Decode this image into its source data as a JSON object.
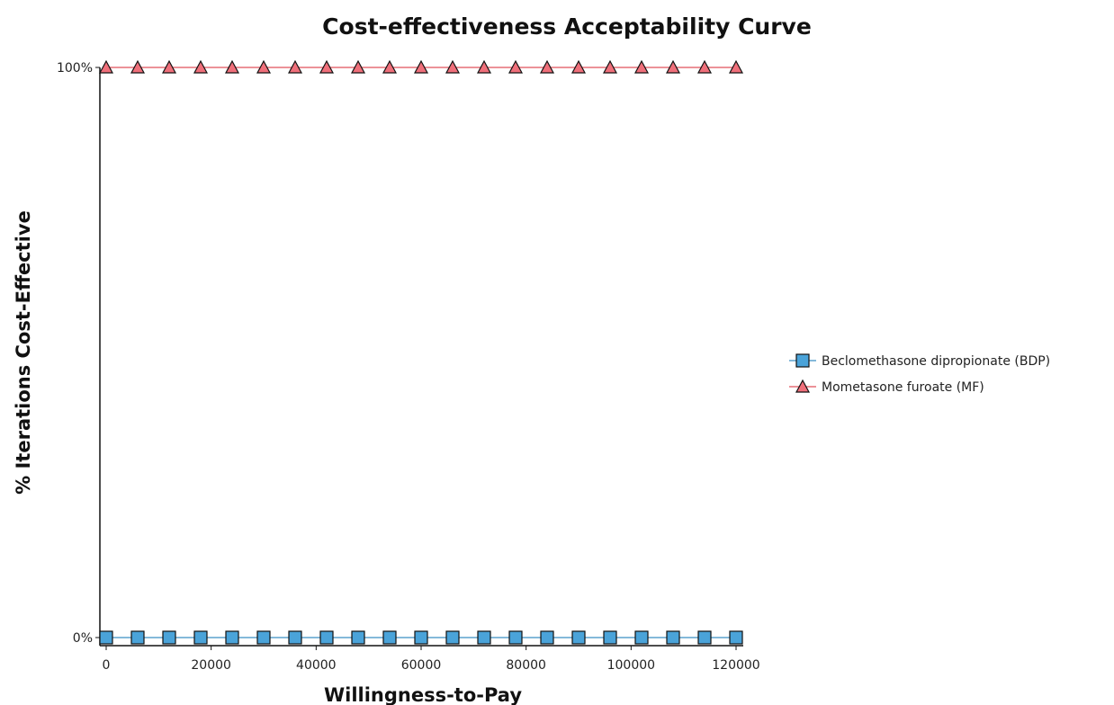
{
  "chart_data": {
    "type": "line",
    "title": "Cost-effectiveness Acceptability Curve",
    "xlabel": "Willingness-to-Pay",
    "ylabel": "% Iterations Cost-Effective",
    "xlim": [
      0,
      120000
    ],
    "ylim": [
      0,
      1
    ],
    "x_ticks": [
      0,
      20000,
      40000,
      60000,
      80000,
      100000,
      120000
    ],
    "x_tick_labels": [
      "0",
      "20000",
      "40000",
      "60000",
      "80000",
      "100000",
      "120000"
    ],
    "y_ticks": [
      0,
      1
    ],
    "y_tick_labels": [
      "0%",
      "100%"
    ],
    "grid": false,
    "legend_position": "right",
    "x": [
      0,
      6000,
      12000,
      18000,
      24000,
      30000,
      36000,
      42000,
      48000,
      54000,
      60000,
      66000,
      72000,
      78000,
      84000,
      90000,
      96000,
      102000,
      108000,
      114000,
      120000
    ],
    "series": [
      {
        "name": "Beclomethasone dipropionate (BDP)",
        "marker": "square",
        "line_color": "#3a8fc4",
        "marker_color": "#4aa3d9",
        "values": [
          0,
          0,
          0,
          0,
          0,
          0,
          0,
          0,
          0,
          0,
          0,
          0,
          0,
          0,
          0,
          0,
          0,
          0,
          0,
          0,
          0
        ]
      },
      {
        "name": "Mometasone furoate (MF)",
        "marker": "triangle",
        "line_color": "#e0505a",
        "marker_color": "#ef6f7a",
        "values": [
          1,
          1,
          1,
          1,
          1,
          1,
          1,
          1,
          1,
          1,
          1,
          1,
          1,
          1,
          1,
          1,
          1,
          1,
          1,
          1,
          1
        ]
      }
    ]
  }
}
